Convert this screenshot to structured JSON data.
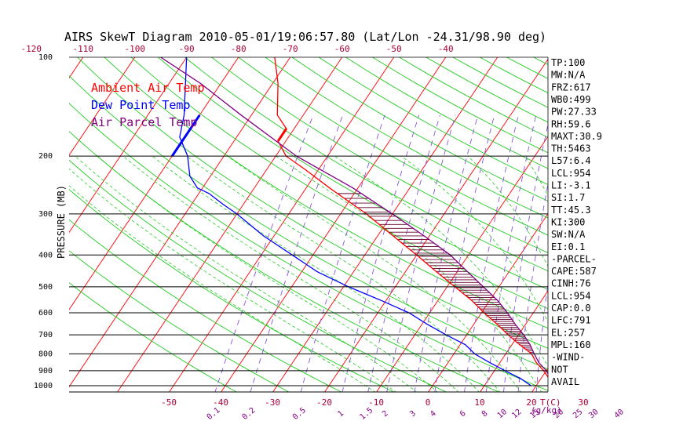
{
  "chart_data": {
    "type": "line",
    "title": "AIRS SkewT Diagram 2010-05-01/19:06:57.80 (Lat/Lon -24.31/98.90 deg)",
    "ylabel": "PRESSURE (MB)",
    "y_scale": "log",
    "ylim": [
      1050,
      100
    ],
    "pressure_ticks": [
      100,
      200,
      300,
      400,
      500,
      600,
      700,
      800,
      900,
      1000
    ],
    "pressure_lines": [
      200,
      300,
      400,
      500,
      600,
      700,
      800,
      900,
      1000
    ],
    "top_temp_ticks": [
      -120,
      -110,
      -100,
      -90,
      -80,
      -70,
      -60,
      -50,
      -40
    ],
    "bottom_temp_ticks": [
      -50,
      -40,
      -30,
      -20,
      -10,
      0,
      10,
      20,
      30
    ],
    "bottom_temp_labels": [
      "-50",
      "-40",
      "-30",
      "-20",
      "-10",
      "0",
      "10",
      "20",
      "30"
    ],
    "bottom_temp_unit": "T(C)",
    "mixing_ratio_labels": [
      "0.1",
      "0.2",
      "0.5",
      "1",
      "1.5",
      "2",
      "3",
      "4",
      "6",
      "8",
      "10",
      "12",
      "15",
      "20",
      "25",
      "30",
      "40"
    ],
    "mixing_ratio_unit": "(g/kg)",
    "legend": [
      {
        "name": "Ambient Air Temp",
        "color": "#ff0000"
      },
      {
        "name": "Dew Point Temp",
        "color": "#0000ff"
      },
      {
        "name": "Air Parcel Temp",
        "color": "#800080"
      }
    ],
    "legend_position": "top-left",
    "series": [
      {
        "name": "Ambient Air Temp",
        "color": "#ff0000",
        "points": [
          [
            1000,
            26
          ],
          [
            975,
            23
          ],
          [
            950,
            21.5
          ],
          [
            900,
            19.5
          ],
          [
            850,
            17
          ],
          [
            800,
            15
          ],
          [
            750,
            11.5
          ],
          [
            700,
            8
          ],
          [
            650,
            4.5
          ],
          [
            600,
            0.5
          ],
          [
            550,
            -3.5
          ],
          [
            500,
            -8.5
          ],
          [
            450,
            -14
          ],
          [
            400,
            -20
          ],
          [
            350,
            -27
          ],
          [
            300,
            -35
          ],
          [
            250,
            -45.5
          ],
          [
            220,
            -52.5
          ],
          [
            200,
            -58
          ],
          [
            180,
            -61.5
          ],
          [
            165,
            -61.5
          ],
          [
            150,
            -65
          ],
          [
            120,
            -69
          ],
          [
            100,
            -73
          ]
        ]
      },
      {
        "name": "Dew Point Temp",
        "color": "#0000ff",
        "points": [
          [
            1000,
            19
          ],
          [
            950,
            16
          ],
          [
            900,
            12
          ],
          [
            850,
            8
          ],
          [
            800,
            4
          ],
          [
            750,
            1
          ],
          [
            700,
            -4
          ],
          [
            650,
            -9
          ],
          [
            600,
            -14
          ],
          [
            550,
            -21
          ],
          [
            500,
            -29
          ],
          [
            450,
            -37
          ],
          [
            400,
            -44
          ],
          [
            350,
            -52
          ],
          [
            300,
            -60
          ],
          [
            280,
            -64
          ],
          [
            260,
            -68
          ],
          [
            250,
            -71
          ],
          [
            230,
            -74
          ],
          [
            200,
            -77
          ],
          [
            175,
            -81
          ],
          [
            150,
            -83
          ],
          [
            100,
            -90
          ]
        ]
      },
      {
        "name": "Air Parcel Temp",
        "color": "#800080",
        "points": [
          [
            1000,
            26
          ],
          [
            975,
            24.5
          ],
          [
            954,
            22
          ],
          [
            900,
            20
          ],
          [
            850,
            17.5
          ],
          [
            800,
            15.5
          ],
          [
            750,
            13.5
          ],
          [
            700,
            11
          ],
          [
            650,
            8
          ],
          [
            600,
            5
          ],
          [
            550,
            1.5
          ],
          [
            500,
            -3
          ],
          [
            450,
            -8
          ],
          [
            400,
            -13.5
          ],
          [
            350,
            -21
          ],
          [
            300,
            -30
          ],
          [
            250,
            -41
          ],
          [
            200,
            -56
          ],
          [
            150,
            -72
          ],
          [
            120,
            -84
          ],
          [
            100,
            -95
          ]
        ]
      }
    ],
    "stats": [
      "TP:100",
      "MW:N/A",
      "FRZ:617",
      "WB0:499",
      "PW:27.33",
      "RH:59.6",
      "MAXT:30.9",
      "TH:5463",
      "L57:6.4",
      "LCL:954",
      "LI:-3.1",
      "SI:1.7",
      "TT:45.3",
      "KI:300",
      "SW:N/A",
      "EI:0.1",
      "-PARCEL-",
      "CAPE:587",
      "CINH:76",
      "LCL:954",
      "CAP:0.0",
      "LFC:791",
      "EL:257",
      "MPL:160",
      "-WIND-",
      "NOT",
      "AVAIL"
    ],
    "grid": true
  }
}
